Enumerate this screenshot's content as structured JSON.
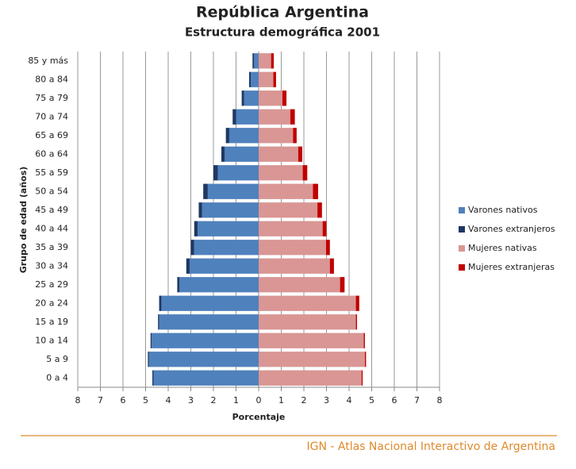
{
  "chart_data": {
    "type": "pyramid",
    "title": "República Argentina",
    "subtitle": "Estructura demográfica 2001",
    "xlabel": "Porcentaje",
    "ylabel": "Grupo de edad (años)",
    "categories": [
      "0 a 4",
      "5 a 9",
      "10 a 14",
      "15 a 19",
      "20 a 24",
      "25 a 29",
      "30 a 34",
      "35 a 39",
      "40 a 44",
      "45 a 49",
      "50 a 54",
      "55 a 59",
      "60 a 64",
      "65 a 69",
      "70 a 74",
      "75 a 79",
      "80 a 84",
      "85 y más"
    ],
    "series": [
      {
        "name": "Varones nativos",
        "color": "#4f81bd",
        "values": [
          -4.65,
          -4.85,
          -4.73,
          -4.4,
          -4.3,
          -3.5,
          -3.05,
          -2.85,
          -2.7,
          -2.5,
          -2.25,
          -1.8,
          -1.5,
          -1.3,
          -1.0,
          -0.65,
          -0.35,
          -0.2
        ]
      },
      {
        "name": "Varones extranjeros",
        "color": "#1f3864",
        "values": [
          -0.05,
          -0.05,
          -0.05,
          -0.05,
          -0.1,
          -0.1,
          -0.15,
          -0.15,
          -0.15,
          -0.15,
          -0.2,
          -0.2,
          -0.15,
          -0.15,
          -0.15,
          -0.1,
          -0.07,
          -0.07
        ]
      },
      {
        "name": "Mujeres nativas",
        "color": "#d99694",
        "values": [
          4.55,
          4.7,
          4.65,
          4.3,
          4.3,
          3.6,
          3.15,
          2.98,
          2.83,
          2.6,
          2.4,
          1.95,
          1.75,
          1.52,
          1.4,
          1.05,
          0.65,
          0.55
        ]
      },
      {
        "name": "Mujeres extranjeras",
        "color": "#c00000",
        "values": [
          0.05,
          0.05,
          0.05,
          0.05,
          0.15,
          0.2,
          0.18,
          0.17,
          0.17,
          0.2,
          0.23,
          0.2,
          0.18,
          0.16,
          0.2,
          0.18,
          0.12,
          0.12
        ]
      }
    ],
    "xlim": [
      -8,
      8
    ],
    "xticks": [
      {
        "value": -8,
        "label": "8"
      },
      {
        "value": -7,
        "label": "7"
      },
      {
        "value": -6,
        "label": "6"
      },
      {
        "value": -5,
        "label": "5"
      },
      {
        "value": -4,
        "label": "4"
      },
      {
        "value": -3,
        "label": "3"
      },
      {
        "value": -2,
        "label": "2"
      },
      {
        "value": -1,
        "label": "1"
      },
      0,
      1,
      2,
      3,
      4,
      5,
      6,
      7,
      8
    ],
    "grid": true,
    "legend": "right",
    "footer": "IGN - Atlas Nacional Interactivo de Argentina"
  }
}
